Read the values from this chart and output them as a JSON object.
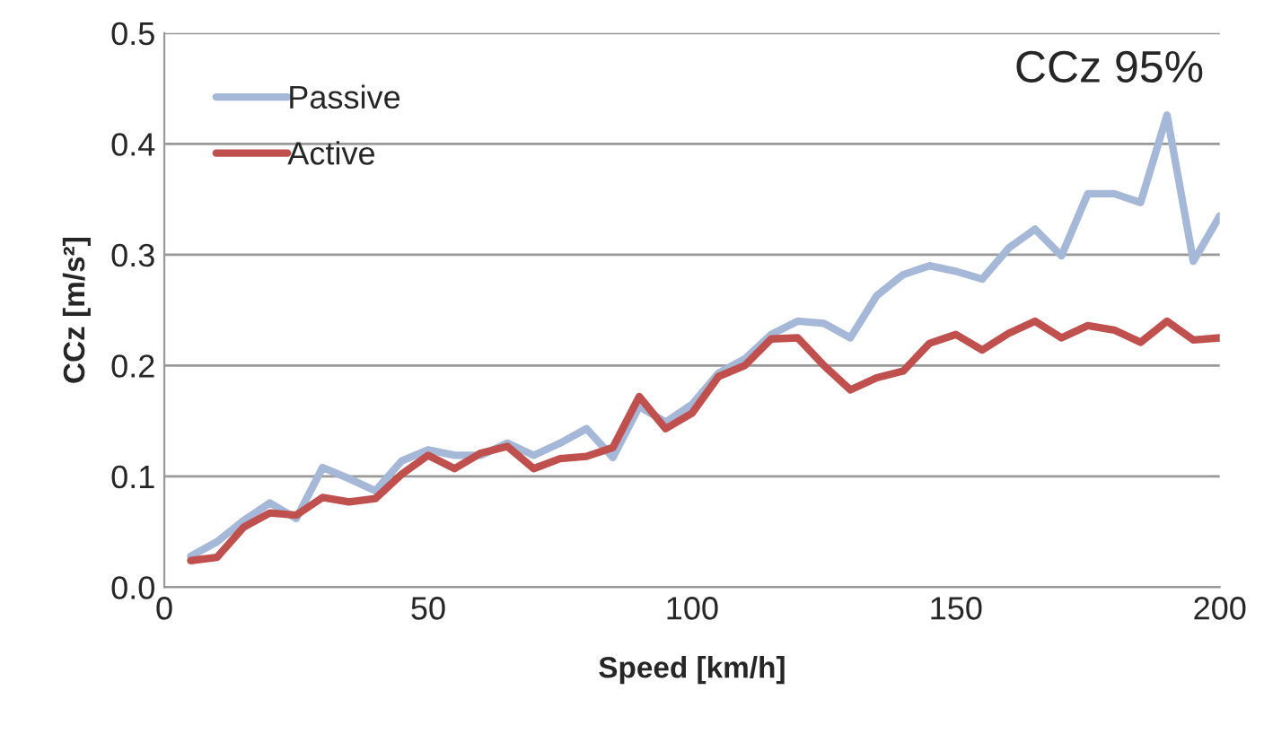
{
  "chart_data": {
    "type": "line",
    "xlabel": "Speed [km/h]",
    "ylabel": "CCz [m/s²]",
    "annotations": [
      "CCz 95%"
    ],
    "x": [
      5,
      10,
      15,
      20,
      25,
      30,
      35,
      40,
      45,
      50,
      55,
      60,
      65,
      70,
      75,
      80,
      85,
      90,
      95,
      100,
      105,
      110,
      115,
      120,
      125,
      130,
      135,
      140,
      145,
      150,
      155,
      160,
      165,
      170,
      175,
      180,
      185,
      190,
      195,
      200
    ],
    "series": [
      {
        "name": "Passive",
        "color": "#a5b8d7",
        "values": [
          0.028,
          0.041,
          0.06,
          0.076,
          0.062,
          0.108,
          0.098,
          0.087,
          0.114,
          0.124,
          0.119,
          0.119,
          0.13,
          0.119,
          0.13,
          0.143,
          0.117,
          0.163,
          0.149,
          0.165,
          0.193,
          0.206,
          0.228,
          0.24,
          0.238,
          0.225,
          0.263,
          0.282,
          0.29,
          0.285,
          0.278,
          0.306,
          0.323,
          0.299,
          0.355,
          0.355,
          0.347,
          0.426,
          0.294,
          0.335
        ]
      },
      {
        "name": "Active",
        "color": "#c0504d",
        "values": [
          0.024,
          0.027,
          0.054,
          0.067,
          0.065,
          0.081,
          0.077,
          0.08,
          0.102,
          0.119,
          0.107,
          0.121,
          0.127,
          0.107,
          0.116,
          0.118,
          0.126,
          0.172,
          0.143,
          0.157,
          0.19,
          0.2,
          0.224,
          0.225,
          0.2,
          0.178,
          0.189,
          0.195,
          0.22,
          0.228,
          0.214,
          0.229,
          0.24,
          0.225,
          0.236,
          0.232,
          0.221,
          0.24,
          0.223,
          0.225
        ]
      }
    ],
    "xlim": [
      0,
      200
    ],
    "xticks": [
      0,
      50,
      100,
      150,
      200
    ],
    "ylim": [
      0,
      0.5
    ],
    "yticks": [
      {
        "value": 0,
        "label": "0.0"
      },
      {
        "value": 0.1,
        "label": "0.1"
      },
      {
        "value": 0.2,
        "label": "0.2"
      },
      {
        "value": 0.3,
        "label": "0.3"
      },
      {
        "value": 0.4,
        "label": "0.4"
      },
      {
        "value": 0.5,
        "label": "0.5"
      }
    ],
    "grid": "y",
    "legend": "top left",
    "marker": "none",
    "line_style": "solid"
  }
}
